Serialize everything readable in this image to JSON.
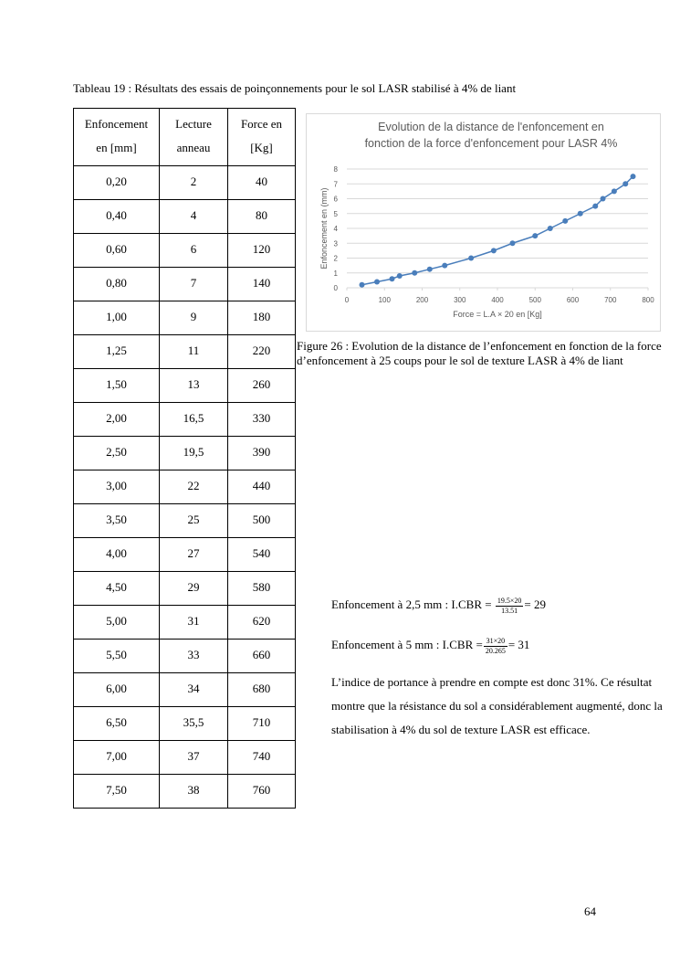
{
  "table_caption": "Tableau 19 : Résultats des essais de poinçonnements pour le sol LASR stabilisé à 4% de liant",
  "table": {
    "header": [
      [
        "Enfoncement",
        "en [mm]"
      ],
      [
        "Lecture",
        "anneau"
      ],
      [
        "Force en",
        "[Kg]"
      ]
    ],
    "rows": [
      [
        "0,20",
        "2",
        "40"
      ],
      [
        "0,40",
        "4",
        "80"
      ],
      [
        "0,60",
        "6",
        "120"
      ],
      [
        "0,80",
        "7",
        "140"
      ],
      [
        "1,00",
        "9",
        "180"
      ],
      [
        "1,25",
        "11",
        "220"
      ],
      [
        "1,50",
        "13",
        "260"
      ],
      [
        "2,00",
        "16,5",
        "330"
      ],
      [
        "2,50",
        "19,5",
        "390"
      ],
      [
        "3,00",
        "22",
        "440"
      ],
      [
        "3,50",
        "25",
        "500"
      ],
      [
        "4,00",
        "27",
        "540"
      ],
      [
        "4,50",
        "29",
        "580"
      ],
      [
        "5,00",
        "31",
        "620"
      ],
      [
        "5,50",
        "33",
        "660"
      ],
      [
        "6,00",
        "34",
        "680"
      ],
      [
        "6,50",
        "35,5",
        "710"
      ],
      [
        "7,00",
        "37",
        "740"
      ],
      [
        "7,50",
        "38",
        "760"
      ]
    ]
  },
  "chart_data": {
    "type": "line",
    "title": [
      "Evolution de la distance de l'enfoncement en",
      "fonction de la force d'enfoncement pour LASR 4%"
    ],
    "x_label": "Force = L.A × 20 en [Kg]",
    "y_label": "Enfoncement en (mm)",
    "x": [
      40,
      80,
      120,
      140,
      180,
      220,
      260,
      330,
      390,
      440,
      500,
      540,
      580,
      620,
      660,
      680,
      710,
      740,
      760
    ],
    "series": [
      {
        "color": "#4a7ebb",
        "values": [
          0.2,
          0.4,
          0.6,
          0.8,
          1,
          1.25,
          1.5,
          2,
          2.5,
          3,
          3.5,
          4,
          4.5,
          5,
          5.5,
          6,
          6.5,
          7,
          7.5
        ]
      }
    ],
    "xlim": [
      0,
      800
    ],
    "xticks": [
      0,
      100,
      200,
      300,
      400,
      500,
      600,
      700,
      800
    ],
    "ylim": [
      0,
      8
    ],
    "yticks": [
      0,
      1,
      2,
      3,
      4,
      5,
      6,
      7,
      8
    ],
    "grid": true
  },
  "figure_caption": "Figure 26 : Evolution de la distance de l’enfoncement en fonction de la force d’enfoncement à 25 coups pour le sol de texture LASR à 4% de liant",
  "formulas": [
    {
      "text": "Enfoncement à 2,5 mm : I.CBR =",
      "numerator": "19.5×20",
      "denominator": "13.51",
      "result": "= 29"
    },
    {
      "text": "Enfoncement à 5 mm : I.CBR =",
      "numerator": "31×20",
      "denominator": "20.265",
      "result": "= 31"
    }
  ],
  "paragraph": "L’indice de portance à prendre en compte est donc 31%. Ce résultat montre que la résistance du sol a considérablement augmenté, donc la stabilisation à 4% du sol de texture LASR est efficace.",
  "page_number": "64"
}
